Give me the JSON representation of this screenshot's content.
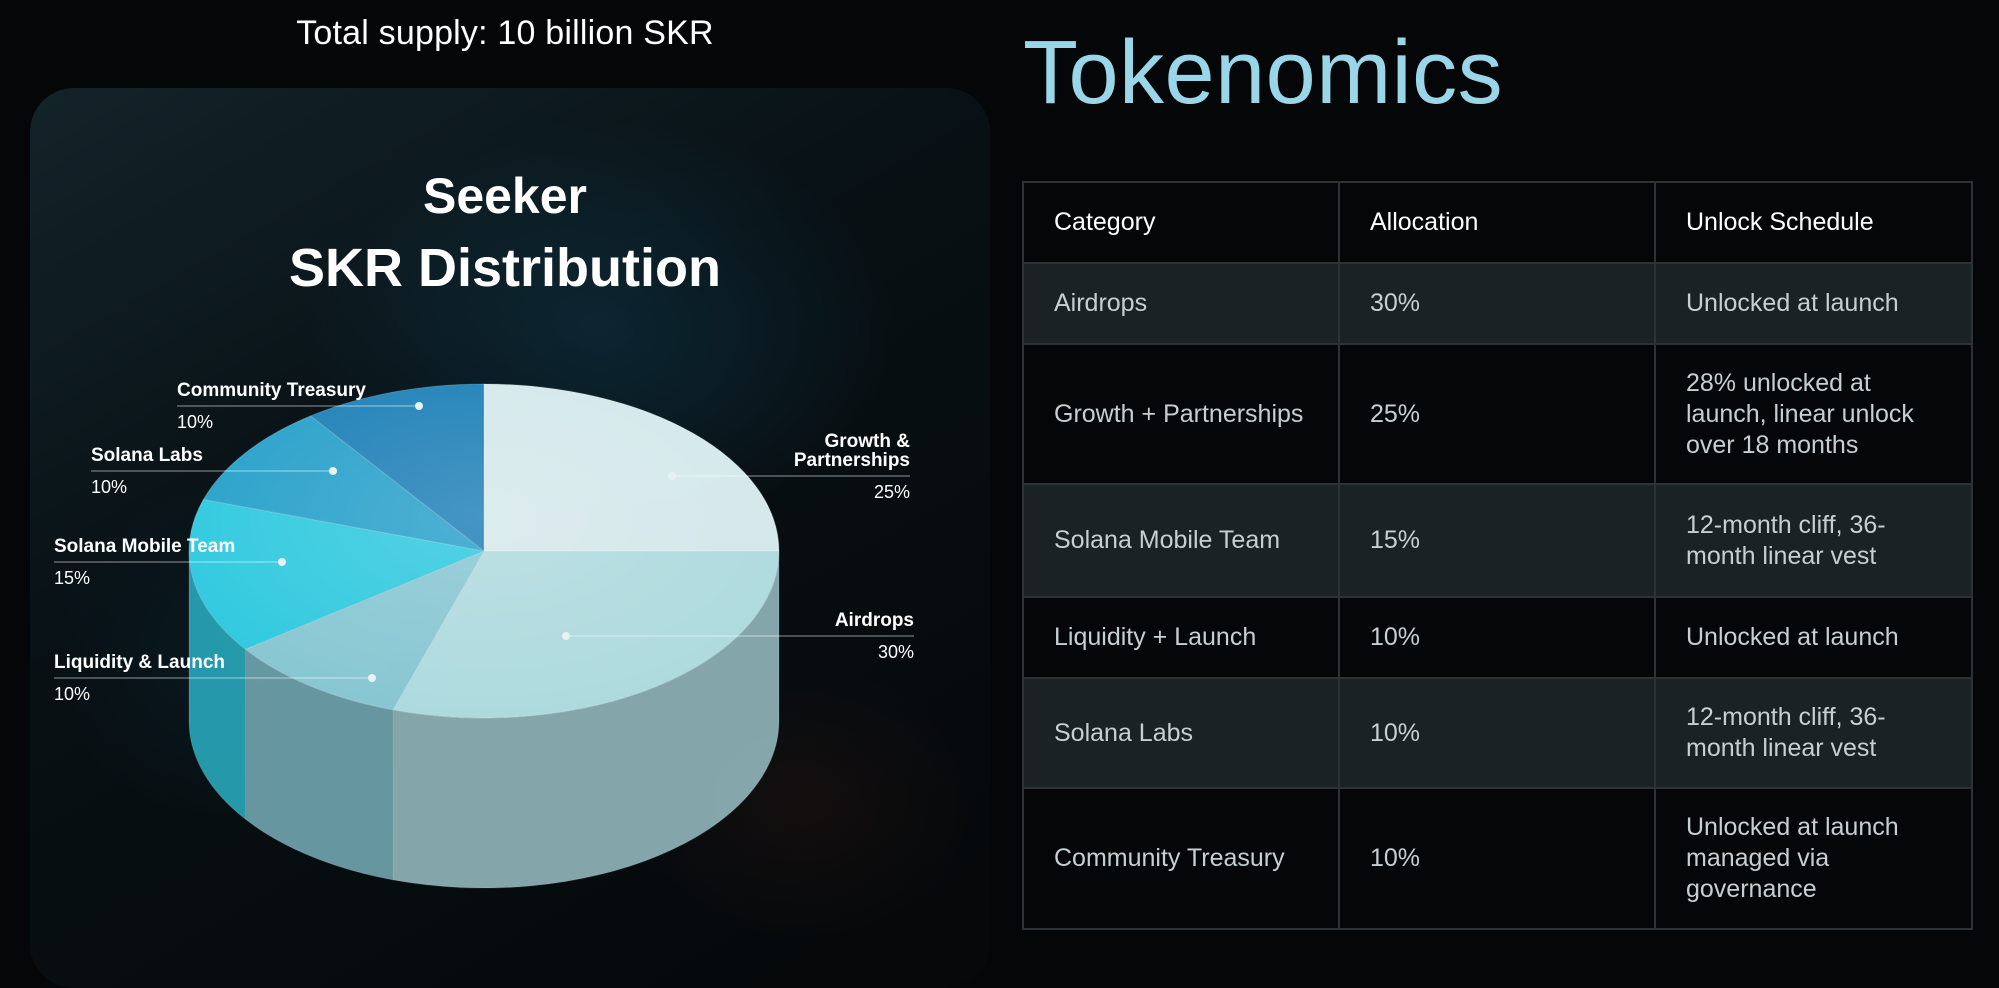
{
  "header": {
    "supply_text": "Total supply: 10 billion SKR",
    "page_title": "Tokenomics",
    "distribution_title_line1": "Seeker",
    "distribution_title_line2": "SKR Distribution"
  },
  "colors": {
    "title_blue": "#9ad6e9",
    "table_border": "#2c3235",
    "table_shade": "#1a2224"
  },
  "chart_data": {
    "type": "pie",
    "title": "Seeker SKR Distribution",
    "unit": "%",
    "slices": [
      {
        "label": "Growth & Partnerships",
        "value": 25,
        "display": "25%",
        "color": "#dff3f7"
      },
      {
        "label": "Airdrops",
        "value": 30,
        "display": "30%",
        "color": "#b7e6ea"
      },
      {
        "label": "Liquidity & Launch",
        "value": 10,
        "display": "10%",
        "color": "#8ed1dc"
      },
      {
        "label": "Solana Mobile Team",
        "value": 15,
        "display": "15%",
        "color": "#33d3ea"
      },
      {
        "label": "Solana Labs",
        "value": 10,
        "display": "10%",
        "color": "#2aa9d4"
      },
      {
        "label": "Community Treasury",
        "value": 10,
        "display": "10%",
        "color": "#1f86c0"
      }
    ]
  },
  "table": {
    "headers": [
      "Category",
      "Allocation",
      "Unlock Schedule"
    ],
    "rows": [
      {
        "category": "Airdrops",
        "allocation": "30%",
        "schedule": "Unlocked at launch"
      },
      {
        "category": "Growth + Partnerships",
        "allocation": "25%",
        "schedule": "28% unlocked at launch, linear unlock over 18 months"
      },
      {
        "category": "Solana Mobile Team",
        "allocation": "15%",
        "schedule": "12-month cliff, 36-month linear vest"
      },
      {
        "category": "Liquidity + Launch",
        "allocation": "10%",
        "schedule": "Unlocked at launch"
      },
      {
        "category": "Solana Labs",
        "allocation": "10%",
        "schedule": "12-month cliff, 36-month linear vest"
      },
      {
        "category": "Community Treasury",
        "allocation": "10%",
        "schedule": "Unlocked at launch managed via governance"
      }
    ]
  }
}
